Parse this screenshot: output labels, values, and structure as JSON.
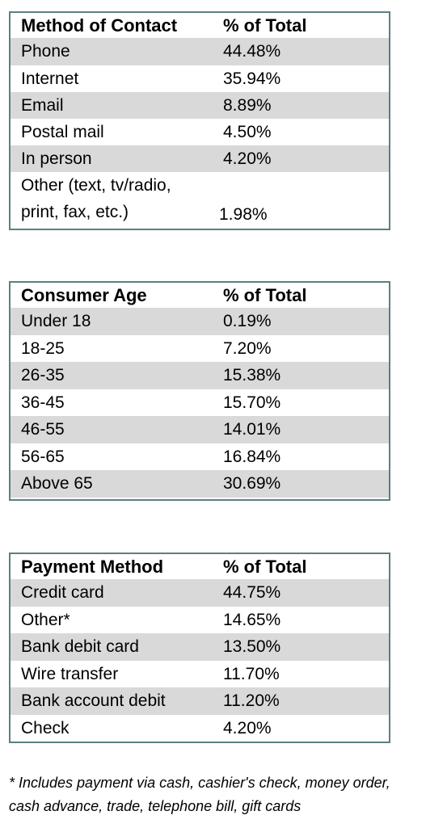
{
  "tables": [
    {
      "header": [
        "Method of Contact",
        "% of Total"
      ],
      "rows": [
        [
          "Phone",
          "44.48%"
        ],
        [
          "Internet",
          "35.94%"
        ],
        [
          "Email",
          "8.89%"
        ],
        [
          "Postal mail",
          "4.50%"
        ],
        [
          "In person",
          "4.20%"
        ],
        [
          "Other (text, tv/radio, print, fax, etc.)",
          "1.98%"
        ]
      ]
    },
    {
      "header": [
        "Consumer Age",
        "% of Total"
      ],
      "rows": [
        [
          "Under 18",
          "0.19%"
        ],
        [
          "18-25",
          "7.20%"
        ],
        [
          "26-35",
          "15.38%"
        ],
        [
          "36-45",
          "15.70%"
        ],
        [
          "46-55",
          "14.01%"
        ],
        [
          "56-65",
          "16.84%"
        ],
        [
          "Above 65",
          "30.69%"
        ]
      ]
    },
    {
      "header": [
        "Payment Method",
        "% of Total"
      ],
      "rows": [
        [
          "Credit card",
          "44.75%"
        ],
        [
          "Other*",
          "14.65%"
        ],
        [
          "Bank debit card",
          "13.50%"
        ],
        [
          "Wire transfer",
          "11.70%"
        ],
        [
          "Bank account debit",
          "11.20%"
        ],
        [
          "Check",
          "4.20%"
        ]
      ]
    }
  ],
  "footnote": "* Includes payment via cash, cashier's check, money order, cash advance, trade, telephone bill, gift cards"
}
